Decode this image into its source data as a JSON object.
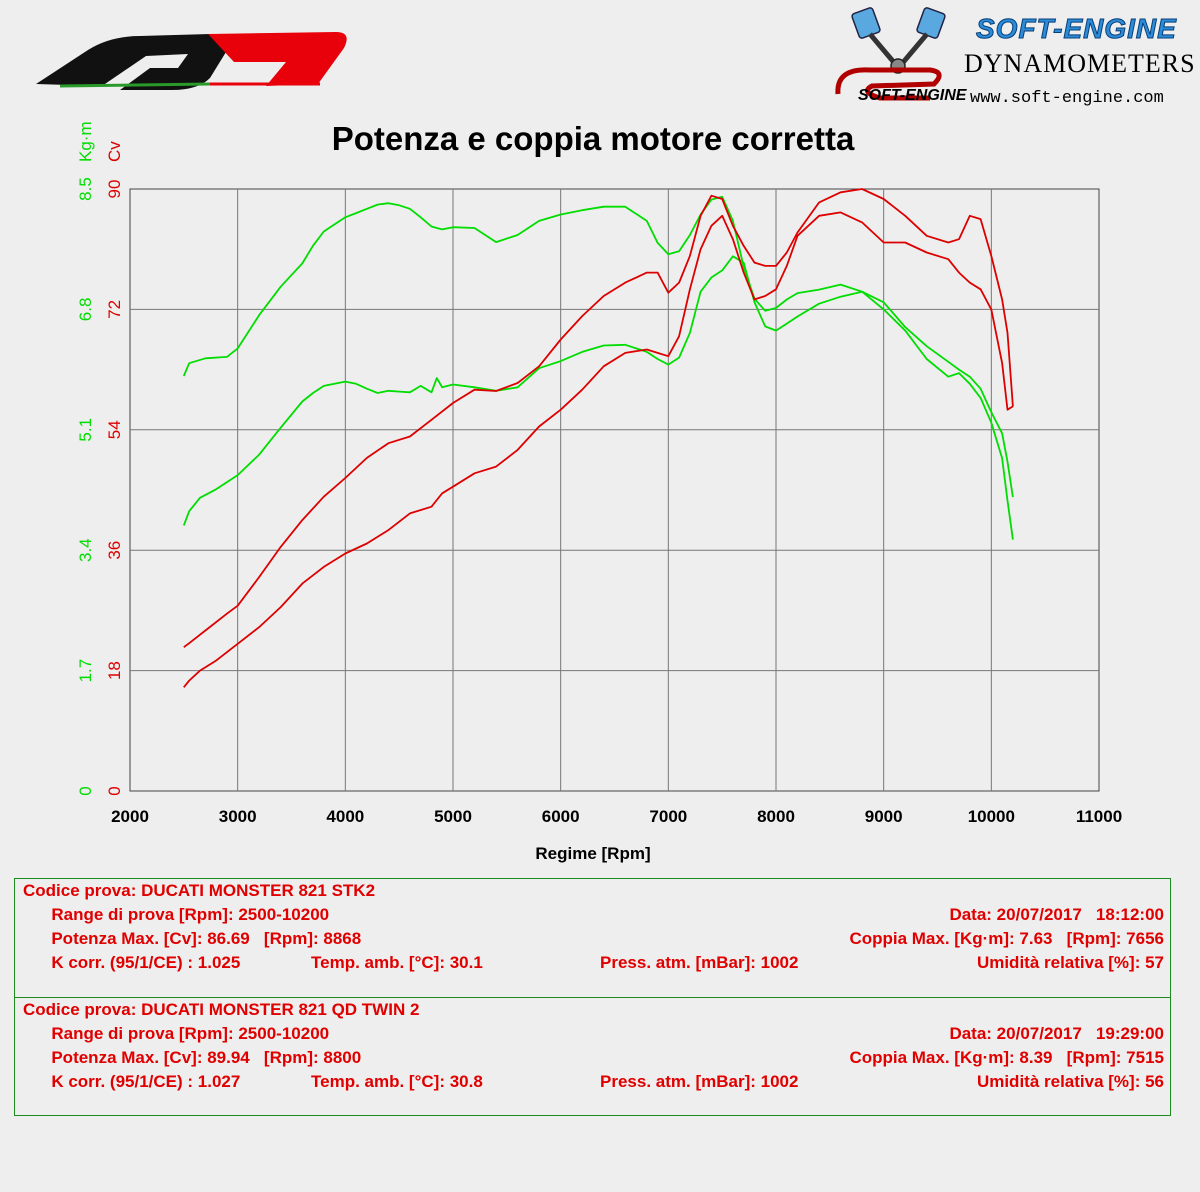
{
  "header": {
    "brand_name": "SOFT-ENGINE",
    "brand_subtitle": "DYNAMOMETERS",
    "brand_url": "www.soft-engine.com",
    "logo_small_text": "SOFT-ENGINE",
    "colors": {
      "torque": "#00dd00",
      "power": "#dd0000",
      "grid": "#888888",
      "qd_logo_red": "#e8000a"
    }
  },
  "chart_data": {
    "type": "line",
    "title": "Potenza e coppia motore corretta",
    "xlabel": "Regime [Rpm]",
    "xlim": [
      2000,
      11000
    ],
    "x_ticks": [
      "2000",
      "3000",
      "4000",
      "5000",
      "6000",
      "7000",
      "8000",
      "9000",
      "10000",
      "11000"
    ],
    "y_left_power": {
      "unit": "Cv",
      "ticks": [
        "0",
        "18",
        "36",
        "54",
        "72",
        "90"
      ],
      "lim": [
        0,
        90
      ]
    },
    "y_left_torque": {
      "unit": "Kg·m",
      "ticks": [
        "0",
        "1.7",
        "3.4",
        "5.1",
        "6.8",
        "8.5"
      ],
      "lim": [
        0,
        8.5
      ]
    },
    "grid": true,
    "series": [
      {
        "kind": "torque",
        "axis": "torque",
        "color": "#00dd00",
        "x": [
          2500,
          2550,
          2700,
          2900,
          3000,
          3200,
          3400,
          3600,
          3700,
          3800,
          4000,
          4100,
          4200,
          4300,
          4400,
          4500,
          4600,
          4700,
          4800,
          4850,
          4900,
          5000,
          5200,
          5400,
          5600,
          5800,
          6000,
          6200,
          6400,
          6600,
          6800,
          6900,
          7000,
          7100,
          7200,
          7300,
          7400,
          7500,
          7600,
          7700,
          7800,
          7900,
          8000,
          8100,
          8200,
          8400,
          8600,
          8800,
          9000,
          9200,
          9400,
          9600,
          9700,
          9800,
          9900,
          10000,
          10100,
          10150,
          10200
        ],
        "y": [
          5.86,
          6.04,
          6.11,
          6.13,
          6.25,
          6.72,
          7.12,
          7.45,
          7.7,
          7.9,
          8.1,
          8.16,
          8.22,
          8.28,
          8.3,
          8.27,
          8.22,
          8.1,
          7.97,
          7.95,
          7.93,
          7.96,
          7.95,
          7.75,
          7.85,
          8.05,
          8.14,
          8.2,
          8.25,
          8.25,
          8.05,
          7.74,
          7.58,
          7.62,
          7.85,
          8.14,
          8.35,
          8.39,
          8.05,
          7.4,
          6.95,
          6.78,
          6.82,
          6.94,
          7.03,
          7.08,
          7.15,
          7.05,
          6.8,
          6.5,
          6.1,
          5.85,
          5.9,
          5.75,
          5.55,
          5.2,
          4.7,
          4.1,
          3.55
        ]
      },
      {
        "kind": "torque",
        "axis": "torque",
        "color": "#00dd00",
        "x": [
          2500,
          2550,
          2650,
          2800,
          3000,
          3200,
          3400,
          3600,
          3700,
          3800,
          4000,
          4100,
          4200,
          4300,
          4400,
          4500,
          4600,
          4700,
          4800,
          4850,
          4900,
          5000,
          5200,
          5400,
          5600,
          5800,
          6000,
          6200,
          6400,
          6600,
          6800,
          6900,
          7000,
          7100,
          7200,
          7300,
          7400,
          7500,
          7600,
          7700,
          7800,
          7900,
          8000,
          8100,
          8200,
          8400,
          8600,
          8800,
          9000,
          9200,
          9400,
          9600,
          9700,
          9800,
          9900,
          10000,
          10100,
          10150,
          10200
        ],
        "y": [
          3.75,
          3.95,
          4.14,
          4.26,
          4.46,
          4.75,
          5.13,
          5.5,
          5.62,
          5.72,
          5.78,
          5.75,
          5.68,
          5.62,
          5.65,
          5.64,
          5.63,
          5.72,
          5.63,
          5.83,
          5.7,
          5.74,
          5.7,
          5.65,
          5.7,
          5.97,
          6.07,
          6.2,
          6.29,
          6.3,
          6.2,
          6.1,
          6.02,
          6.12,
          6.47,
          7.05,
          7.25,
          7.35,
          7.55,
          7.46,
          6.9,
          6.56,
          6.5,
          6.6,
          6.7,
          6.88,
          6.98,
          7.05,
          6.9,
          6.55,
          6.28,
          6.06,
          5.95,
          5.85,
          5.68,
          5.35,
          5.05,
          4.65,
          4.15
        ]
      },
      {
        "kind": "power",
        "axis": "power",
        "color": "#dd0000",
        "x": [
          2500,
          2550,
          2700,
          2900,
          3000,
          3200,
          3400,
          3600,
          3800,
          4000,
          4200,
          4400,
          4600,
          4800,
          5000,
          5200,
          5400,
          5600,
          5800,
          6000,
          6200,
          6400,
          6600,
          6800,
          6900,
          7000,
          7100,
          7200,
          7300,
          7400,
          7500,
          7600,
          7700,
          7800,
          7900,
          8000,
          8100,
          8200,
          8400,
          8600,
          8800,
          9000,
          9200,
          9400,
          9600,
          9700,
          9800,
          9900,
          10000,
          10100,
          10150,
          10200
        ],
        "y": [
          21.5,
          22.1,
          24.0,
          26.5,
          27.7,
          32.0,
          36.5,
          40.5,
          44.0,
          46.8,
          49.8,
          52.0,
          53.0,
          55.5,
          58.0,
          60.0,
          59.8,
          61.0,
          63.5,
          67.5,
          71.0,
          74.0,
          76.0,
          77.5,
          77.5,
          74.5,
          76.0,
          80.0,
          86.0,
          89.0,
          88.5,
          84.5,
          81.5,
          79.0,
          78.5,
          78.5,
          80.5,
          83.5,
          88.0,
          89.5,
          90.0,
          88.5,
          86.0,
          83.0,
          82.0,
          82.5,
          86.0,
          85.5,
          80.0,
          73.5,
          68.5,
          57.5
        ]
      },
      {
        "kind": "power",
        "axis": "power",
        "color": "#dd0000",
        "x": [
          2500,
          2550,
          2650,
          2800,
          3000,
          3200,
          3400,
          3600,
          3800,
          4000,
          4200,
          4400,
          4600,
          4800,
          4850,
          4900,
          5000,
          5200,
          5400,
          5600,
          5800,
          6000,
          6200,
          6400,
          6600,
          6800,
          6900,
          7000,
          7100,
          7200,
          7300,
          7400,
          7500,
          7600,
          7700,
          7800,
          7900,
          8000,
          8100,
          8200,
          8400,
          8600,
          8800,
          9000,
          9200,
          9400,
          9600,
          9700,
          9800,
          9900,
          10000,
          10100,
          10150,
          10200
        ],
        "y": [
          15.5,
          16.5,
          18.0,
          19.5,
          22.0,
          24.5,
          27.5,
          31.0,
          33.5,
          35.5,
          37.0,
          39.0,
          41.5,
          42.5,
          43.5,
          44.5,
          45.5,
          47.5,
          48.5,
          51.0,
          54.5,
          57.0,
          60.0,
          63.5,
          65.5,
          66.0,
          65.5,
          65.0,
          68.0,
          75.0,
          81.0,
          84.5,
          86.0,
          82.5,
          77.5,
          73.5,
          74.0,
          75.0,
          78.5,
          83.0,
          86.0,
          86.5,
          85.0,
          82.0,
          82.0,
          80.5,
          79.5,
          77.5,
          76.0,
          75.0,
          72.0,
          64.0,
          57.0,
          57.5
        ]
      }
    ]
  },
  "results": [
    {
      "codice": "Codice prova: DUCATI MONSTER 821 STK2",
      "range": "Range di prova [Rpm]: 2500-10200",
      "data": "Data: 20/07/2017   18:12:00",
      "potenza": "Potenza Max. [Cv]: 86.69   [Rpm]: 8868",
      "coppia": "Coppia Max. [Kg·m]: 7.63   [Rpm]: 7656",
      "kcorr": "K corr. (95/1/CE) : 1.025",
      "temp": "Temp. amb. [°C]: 30.1",
      "press": "Press. atm. [mBar]: 1002",
      "umid": "Umidità relativa [%]: 57"
    },
    {
      "codice": "Codice prova: DUCATI MONSTER 821 QD TWIN 2",
      "range": "Range di prova [Rpm]: 2500-10200",
      "data": "Data: 20/07/2017   19:29:00",
      "potenza": "Potenza Max. [Cv]: 89.94   [Rpm]: 8800",
      "coppia": "Coppia Max. [Kg·m]: 8.39   [Rpm]: 7515",
      "kcorr": "K corr. (95/1/CE) : 1.027",
      "temp": "Temp. amb. [°C]: 30.8",
      "press": "Press. atm. [mBar]: 1002",
      "umid": "Umidità relativa [%]: 56"
    }
  ]
}
